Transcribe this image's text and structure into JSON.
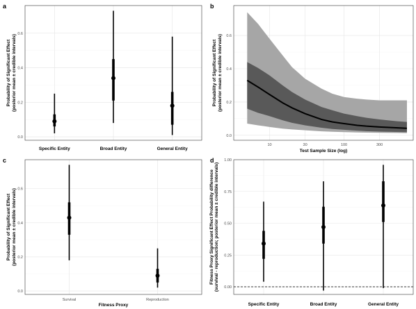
{
  "chart_data": [
    {
      "panel": "a",
      "type": "interval",
      "categories": [
        "Specific Entity",
        "Broad Entity",
        "General Entity"
      ],
      "values": [
        0.09,
        0.34,
        0.18
      ],
      "inner": [
        [
          0.06,
          0.13
        ],
        [
          0.21,
          0.45
        ],
        [
          0.07,
          0.26
        ]
      ],
      "outer": [
        [
          0.02,
          0.25
        ],
        [
          0.08,
          0.73
        ],
        [
          0.01,
          0.58
        ]
      ],
      "ylabel": [
        "Probability of Significant Effect",
        "(posterior mean ± credible intervals)"
      ],
      "xlabel": "",
      "yticks": [
        0.0,
        0.2,
        0.4,
        0.6
      ],
      "ytick_labels": [
        "0.0",
        "0.2",
        "0.4",
        "0.6"
      ],
      "ylim": [
        -0.02,
        0.76
      ],
      "grid": true
    },
    {
      "panel": "b",
      "type": "line",
      "x": [
        5,
        7,
        10,
        15,
        20,
        30,
        50,
        70,
        100,
        150,
        200,
        300,
        500,
        700
      ],
      "values": [
        0.33,
        0.29,
        0.245,
        0.195,
        0.165,
        0.13,
        0.095,
        0.08,
        0.07,
        0.06,
        0.055,
        0.05,
        0.045,
        0.042
      ],
      "inner": [
        [
          0.16,
          0.44
        ],
        [
          0.135,
          0.405
        ],
        [
          0.115,
          0.36
        ],
        [
          0.09,
          0.3
        ],
        [
          0.075,
          0.26
        ],
        [
          0.06,
          0.215
        ],
        [
          0.045,
          0.17
        ],
        [
          0.038,
          0.15
        ],
        [
          0.033,
          0.13
        ],
        [
          0.028,
          0.115
        ],
        [
          0.025,
          0.105
        ],
        [
          0.022,
          0.095
        ],
        [
          0.02,
          0.085
        ],
        [
          0.019,
          0.08
        ]
      ],
      "outer": [
        [
          0.07,
          0.74
        ],
        [
          0.06,
          0.67
        ],
        [
          0.05,
          0.58
        ],
        [
          0.04,
          0.48
        ],
        [
          0.035,
          0.41
        ],
        [
          0.03,
          0.34
        ],
        [
          0.024,
          0.28
        ],
        [
          0.021,
          0.25
        ],
        [
          0.019,
          0.23
        ],
        [
          0.017,
          0.22
        ],
        [
          0.016,
          0.215
        ],
        [
          0.015,
          0.21
        ],
        [
          0.014,
          0.21
        ],
        [
          0.013,
          0.21
        ]
      ],
      "xlabel": "Test Sample Size (log)",
      "ylabel": [
        "Probability of Significant Effect",
        "(posterior mean ± credible intervals)"
      ],
      "xscale": "log",
      "xticks": [
        10,
        30,
        100,
        300
      ],
      "xtick_labels": [
        "10",
        "30",
        "100",
        "300"
      ],
      "yticks": [
        0.0,
        0.2,
        0.4,
        0.6
      ],
      "ytick_labels": [
        "0.0",
        "0.2",
        "0.4",
        "0.6"
      ],
      "xlim": [
        3.3,
        850
      ],
      "ylim": [
        -0.03,
        0.78
      ],
      "grid": true
    },
    {
      "panel": "c",
      "type": "interval",
      "categories": [
        "Survival",
        "Reproduction"
      ],
      "values": [
        0.43,
        0.09
      ],
      "inner": [
        [
          0.33,
          0.52
        ],
        [
          0.05,
          0.13
        ]
      ],
      "outer": [
        [
          0.18,
          0.74
        ],
        [
          0.02,
          0.25
        ]
      ],
      "xlabel": "Fitness Proxy",
      "ylabel": [
        "Probability of Significant Effect",
        "(posterior mean ± credible intervals)"
      ],
      "yticks": [
        0.0,
        0.2,
        0.4,
        0.6
      ],
      "ytick_labels": [
        "0.0",
        "0.2",
        "0.4",
        "0.6"
      ],
      "ylim": [
        -0.02,
        0.77
      ],
      "grid": true
    },
    {
      "panel": "d",
      "type": "interval",
      "categories": [
        "Specific Entity",
        "Broad Entity",
        "General Entity"
      ],
      "values": [
        0.34,
        0.47,
        0.64
      ],
      "inner": [
        [
          0.22,
          0.44
        ],
        [
          0.34,
          0.63
        ],
        [
          0.51,
          0.83
        ]
      ],
      "outer": [
        [
          0.04,
          0.67
        ],
        [
          -0.03,
          0.83
        ],
        [
          -0.01,
          0.96
        ]
      ],
      "ylabel": [
        "Fitness Proxy Significant Effect Probability difference",
        "(survival - reproduction; posterior mean ± credible intervals)"
      ],
      "xlabel": "",
      "yticks": [
        0.0,
        0.25,
        0.5,
        0.75,
        1.0
      ],
      "ytick_labels": [
        "0.00",
        "0.25",
        "0.50",
        "0.75",
        "1.00"
      ],
      "ylim": [
        -0.06,
        1.0
      ],
      "reference_line": 0,
      "grid": true
    }
  ],
  "panel_letters": [
    "a",
    "b",
    "c",
    "d"
  ],
  "colors": {
    "mark": "#000000",
    "outer_band": "#a6a6a6",
    "inner_band": "#595959",
    "grid": "#e5e5e5"
  }
}
